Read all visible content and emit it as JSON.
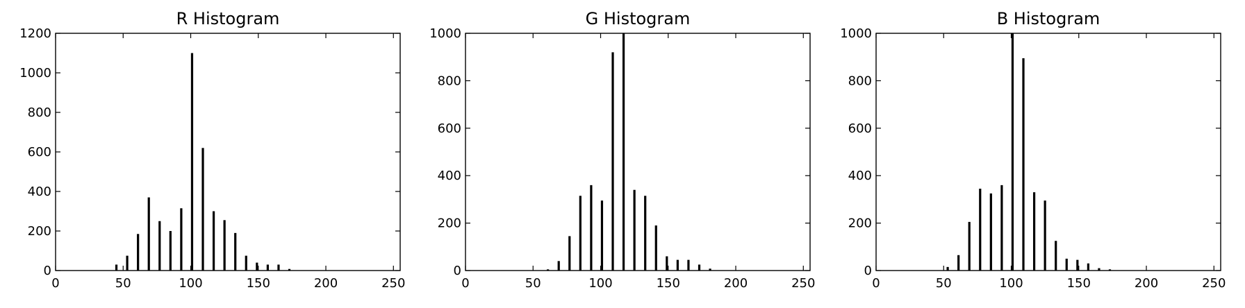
{
  "chart_data": [
    {
      "type": "bar",
      "title": "R Histogram",
      "xlabel": "",
      "ylabel": "",
      "xlim": [
        0,
        255
      ],
      "ylim": [
        0,
        1200
      ],
      "xticks": [
        0,
        50,
        100,
        150,
        200,
        250
      ],
      "yticks": [
        0,
        200,
        400,
        600,
        800,
        1000,
        1200
      ],
      "grid": false,
      "legend": "none",
      "bar_color": "#000000",
      "x": [
        45,
        53,
        61,
        69,
        77,
        85,
        93,
        101,
        109,
        117,
        125,
        133,
        141,
        149,
        157,
        165,
        173
      ],
      "values": [
        30,
        75,
        185,
        370,
        250,
        200,
        315,
        1100,
        620,
        300,
        255,
        190,
        75,
        40,
        30,
        30,
        8
      ]
    },
    {
      "type": "bar",
      "title": "G Histogram",
      "xlabel": "",
      "ylabel": "",
      "xlim": [
        0,
        255
      ],
      "ylim": [
        0,
        1000
      ],
      "xticks": [
        0,
        50,
        100,
        150,
        200,
        250
      ],
      "yticks": [
        0,
        200,
        400,
        600,
        800,
        1000
      ],
      "grid": false,
      "legend": "none",
      "bar_color": "#000000",
      "x": [
        61,
        69,
        77,
        85,
        93,
        101,
        109,
        117,
        125,
        133,
        141,
        149,
        157,
        165,
        173,
        181
      ],
      "values": [
        5,
        40,
        145,
        315,
        360,
        295,
        920,
        1000,
        340,
        315,
        190,
        60,
        45,
        45,
        25,
        8
      ]
    },
    {
      "type": "bar",
      "title": "B Histogram",
      "xlabel": "",
      "ylabel": "",
      "xlim": [
        0,
        255
      ],
      "ylim": [
        0,
        1000
      ],
      "xticks": [
        0,
        50,
        100,
        150,
        200,
        250
      ],
      "yticks": [
        0,
        200,
        400,
        600,
        800,
        1000
      ],
      "grid": false,
      "legend": "none",
      "bar_color": "#000000",
      "x": [
        53,
        61,
        69,
        77,
        85,
        93,
        101,
        109,
        117,
        125,
        133,
        141,
        149,
        157,
        165,
        173
      ],
      "values": [
        15,
        65,
        205,
        345,
        325,
        360,
        1000,
        895,
        330,
        295,
        125,
        50,
        45,
        30,
        10,
        5
      ]
    }
  ]
}
